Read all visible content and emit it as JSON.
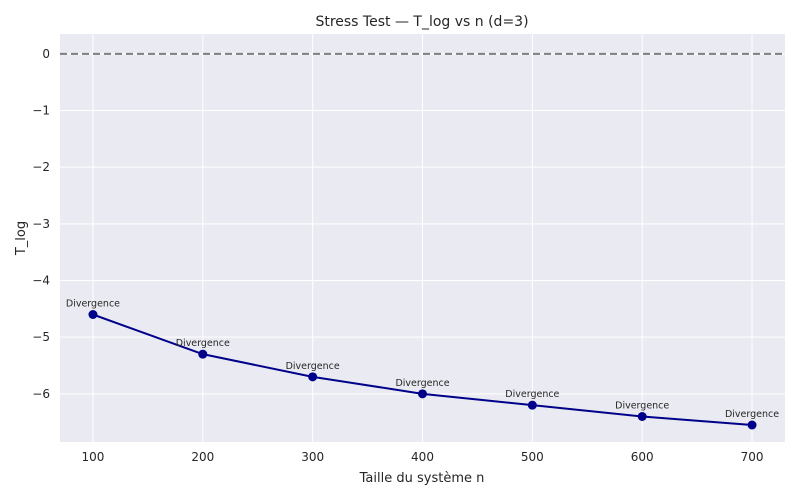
{
  "chart_data": {
    "type": "line",
    "title": "Stress Test — T_log vs n (d=3)",
    "xlabel": "Taille du système n",
    "ylabel": "T_log",
    "x": [
      100,
      200,
      300,
      400,
      500,
      600,
      700
    ],
    "series": [
      {
        "values": [
          -4.6,
          -5.3,
          -5.7,
          -6.0,
          -6.2,
          -6.4,
          -6.55
        ],
        "labels": [
          "Divergence",
          "Divergence",
          "Divergence",
          "Divergence",
          "Divergence",
          "Divergence",
          "Divergence"
        ]
      }
    ],
    "reference_line": {
      "y": 0,
      "style": "dashed"
    },
    "xlim": [
      70,
      730
    ],
    "ylim": [
      -6.85,
      0.35
    ],
    "xticks": [
      100,
      200,
      300,
      400,
      500,
      600,
      700
    ],
    "xtick_labels": [
      "100",
      "200",
      "300",
      "400",
      "500",
      "600",
      "700"
    ],
    "yticks": [
      0,
      -1,
      -2,
      -3,
      -4,
      -5,
      -6
    ],
    "ytick_labels": [
      "0",
      "−1",
      "−2",
      "−3",
      "−4",
      "−5",
      "−6"
    ],
    "grid": true,
    "colors": {
      "background": "#eaeaf2",
      "grid": "#ffffff",
      "line": "#00008b",
      "marker": "#00008b",
      "reference": "#7f7f7f"
    }
  }
}
